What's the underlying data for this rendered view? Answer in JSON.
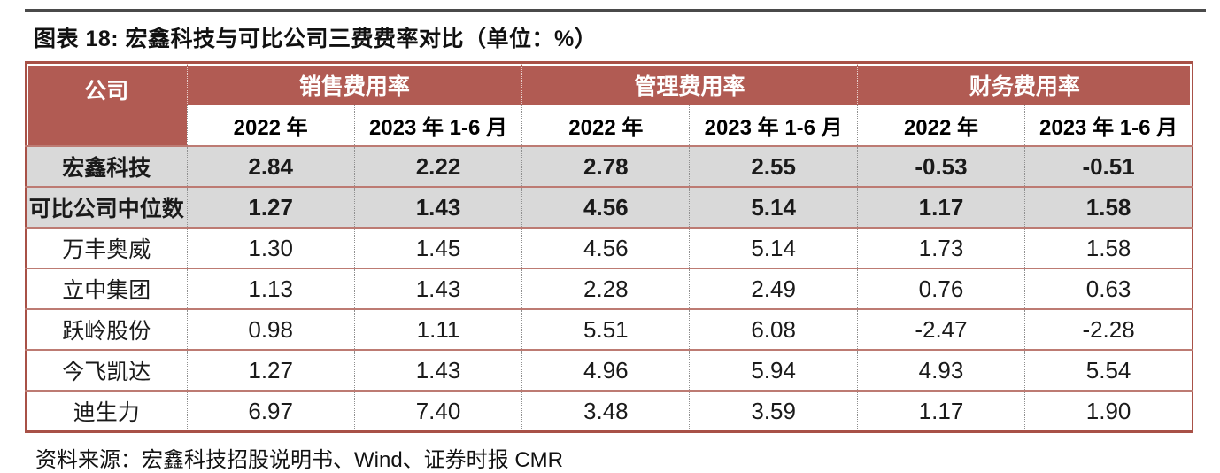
{
  "figure": {
    "title": "图表 18: 宏鑫科技与可比公司三费费率对比（单位：%）",
    "source": "资料来源：宏鑫科技招股说明书、Wind、证券时报 CMR"
  },
  "table": {
    "company_column_header": "公司",
    "group_headers": [
      "销售费用率",
      "管理费用率",
      "财务费用率"
    ],
    "period_headers": [
      "2022 年",
      "2023 年 1-6 月",
      "2022 年",
      "2023 年 1-6 月",
      "2022 年",
      "2023 年 1-6 月"
    ],
    "rows": [
      {
        "company": "宏鑫科技",
        "highlight": true,
        "values": [
          "2.84",
          "2.22",
          "2.78",
          "2.55",
          "-0.53",
          "-0.51"
        ]
      },
      {
        "company": "可比公司中位数",
        "highlight": true,
        "values": [
          "1.27",
          "1.43",
          "4.56",
          "5.14",
          "1.17",
          "1.58"
        ]
      },
      {
        "company": "万丰奥威",
        "highlight": false,
        "values": [
          "1.30",
          "1.45",
          "4.56",
          "5.14",
          "1.73",
          "1.58"
        ]
      },
      {
        "company": "立中集团",
        "highlight": false,
        "values": [
          "1.13",
          "1.43",
          "2.28",
          "2.49",
          "0.76",
          "0.63"
        ]
      },
      {
        "company": "跃岭股份",
        "highlight": false,
        "values": [
          "0.98",
          "1.11",
          "5.51",
          "6.08",
          "-2.47",
          "-2.28"
        ]
      },
      {
        "company": "今飞凯达",
        "highlight": false,
        "values": [
          "1.27",
          "1.43",
          "4.96",
          "5.94",
          "4.93",
          "5.54"
        ]
      },
      {
        "company": "迪生力",
        "highlight": false,
        "values": [
          "6.97",
          "7.40",
          "3.48",
          "3.59",
          "1.17",
          "1.90"
        ]
      }
    ]
  },
  "colors": {
    "header_bg": "#B15B53",
    "header_text": "#FFFFFF",
    "highlight_row_bg": "#D9D9D9",
    "outer_border": "#A85147",
    "row_border": "#BD7B73",
    "column_dotted": "#8F8F8F",
    "top_rule": "#4A4A4A",
    "text": "#1A1A1A"
  }
}
